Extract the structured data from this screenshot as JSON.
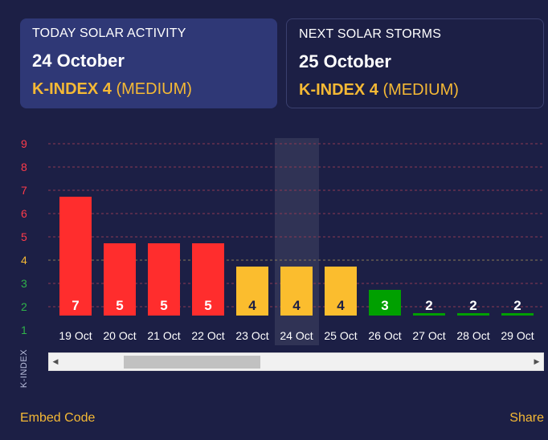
{
  "today": {
    "title": "TODAY SOLAR ACTIVITY",
    "date": "24 October",
    "kindex": "K-INDEX 4",
    "level": "(MEDIUM)"
  },
  "next": {
    "title": "NEXT SOLAR STORMS",
    "date": "25 October",
    "kindex": "K-INDEX 4",
    "level": "(MEDIUM)"
  },
  "chart_data": {
    "type": "bar",
    "ylabel": "K-INDEX",
    "ylim": [
      1,
      9
    ],
    "yticks": [
      9,
      8,
      7,
      6,
      5,
      4,
      3,
      2,
      1
    ],
    "categories": [
      "19 Oct",
      "20 Oct",
      "21 Oct",
      "22 Oct",
      "23 Oct",
      "24 Oct",
      "25 Oct",
      "26 Oct",
      "27 Oct",
      "28 Oct",
      "29 Oct"
    ],
    "values": [
      7,
      5,
      5,
      5,
      4,
      4,
      4,
      3,
      2,
      2,
      2
    ],
    "highlight_category": "24 Oct",
    "colors": {
      "high": "#ff2d2d",
      "medium": "#fbbd2e",
      "low": "#00a000",
      "tick_high": "#ff3b4a",
      "tick_medium": "#f5b935",
      "tick_low": "#2fb34a",
      "gridline": "#8b3a52"
    }
  },
  "footer": {
    "embed": "Embed Code",
    "share": "Share"
  },
  "icons": {
    "scroll_left": "caret-left-icon",
    "scroll_right": "caret-right-icon"
  }
}
